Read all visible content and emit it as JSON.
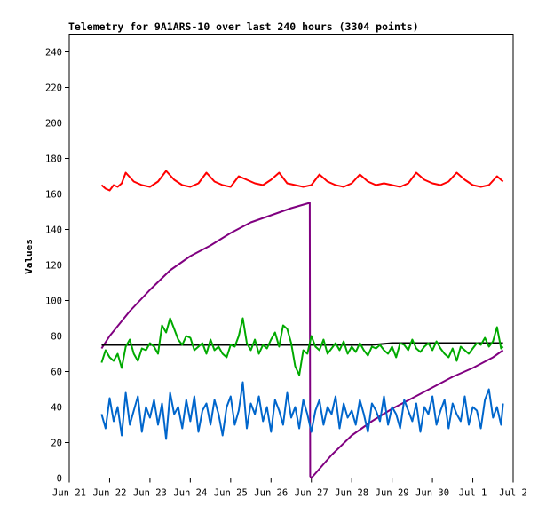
{
  "chart_data": {
    "type": "line",
    "title": "Telemetry for 9A1ARS-10 over last 240 hours (3304 points)",
    "ylabel": "Values",
    "xlabel": "",
    "ylim": [
      0,
      250
    ],
    "yticks": [
      0,
      20,
      40,
      60,
      80,
      100,
      120,
      140,
      160,
      180,
      200,
      220,
      240
    ],
    "xlim": [
      0,
      11
    ],
    "xticks": [
      {
        "label": "Jun 21",
        "x": 0
      },
      {
        "label": "Jun 22",
        "x": 1
      },
      {
        "label": "Jun 23",
        "x": 2
      },
      {
        "label": "Jun 24",
        "x": 3
      },
      {
        "label": "Jun 25",
        "x": 4
      },
      {
        "label": "Jun 26",
        "x": 5
      },
      {
        "label": "Jun 27",
        "x": 6
      },
      {
        "label": "Jun 28",
        "x": 7
      },
      {
        "label": "Jun 29",
        "x": 8
      },
      {
        "label": "Jun 30",
        "x": 9
      },
      {
        "label": "Jul 1",
        "x": 10
      },
      {
        "label": "Jul 2",
        "x": 11
      }
    ],
    "grid": false,
    "legend": "none",
    "series": [
      {
        "color": "#ff0000",
        "x": [
          0.8,
          0.9,
          1.0,
          1.1,
          1.2,
          1.3,
          1.4,
          1.6,
          1.8,
          2.0,
          2.2,
          2.4,
          2.6,
          2.8,
          3.0,
          3.2,
          3.4,
          3.6,
          3.8,
          4.0,
          4.2,
          4.4,
          4.6,
          4.8,
          5.0,
          5.2,
          5.4,
          5.6,
          5.8,
          6.0,
          6.2,
          6.4,
          6.6,
          6.8,
          7.0,
          7.2,
          7.4,
          7.6,
          7.8,
          8.0,
          8.2,
          8.4,
          8.6,
          8.8,
          9.0,
          9.2,
          9.4,
          9.6,
          9.8,
          10.0,
          10.2,
          10.4,
          10.6,
          10.75
        ],
        "y": [
          165,
          163,
          162,
          165,
          164,
          166,
          172,
          167,
          165,
          164,
          167,
          173,
          168,
          165,
          164,
          166,
          172,
          167,
          165,
          164,
          170,
          168,
          166,
          165,
          168,
          172,
          166,
          165,
          164,
          165,
          171,
          167,
          165,
          164,
          166,
          171,
          167,
          165,
          166,
          165,
          164,
          166,
          172,
          168,
          166,
          165,
          167,
          172,
          168,
          165,
          164,
          165,
          170,
          167
        ]
      },
      {
        "color": "#800080",
        "x": [
          0.8,
          1.0,
          1.5,
          2.0,
          2.5,
          3.0,
          3.5,
          4.0,
          4.5,
          5.0,
          5.5,
          5.96,
          5.97,
          6.0,
          6.5,
          7.0,
          7.5,
          8.0,
          8.5,
          9.0,
          9.5,
          10.0,
          10.5,
          10.75
        ],
        "y": [
          73,
          80,
          94,
          106,
          117,
          125,
          131,
          138,
          144,
          148,
          152,
          155,
          1,
          0,
          13,
          24,
          32,
          39,
          45,
          51,
          57,
          62,
          68,
          72
        ]
      },
      {
        "color": "#000000",
        "x": [
          0.8,
          1.5,
          2.5,
          3.5,
          4.5,
          5.5,
          6.5,
          7.5,
          8.0,
          8.5,
          9.5,
          10.75
        ],
        "y": [
          75,
          75,
          75,
          75,
          75,
          75,
          75,
          75,
          76,
          76,
          76,
          76
        ]
      },
      {
        "color": "#00aa00",
        "x": [
          0.8,
          0.9,
          1.0,
          1.1,
          1.2,
          1.3,
          1.4,
          1.5,
          1.6,
          1.7,
          1.8,
          1.9,
          2.0,
          2.1,
          2.2,
          2.3,
          2.4,
          2.5,
          2.6,
          2.7,
          2.8,
          2.9,
          3.0,
          3.1,
          3.2,
          3.3,
          3.4,
          3.5,
          3.6,
          3.7,
          3.8,
          3.9,
          4.0,
          4.1,
          4.2,
          4.3,
          4.4,
          4.5,
          4.6,
          4.7,
          4.8,
          4.9,
          5.0,
          5.1,
          5.2,
          5.3,
          5.4,
          5.5,
          5.6,
          5.7,
          5.8,
          5.9,
          6.0,
          6.1,
          6.2,
          6.3,
          6.4,
          6.5,
          6.6,
          6.7,
          6.8,
          6.9,
          7.0,
          7.1,
          7.2,
          7.3,
          7.4,
          7.5,
          7.6,
          7.7,
          7.8,
          7.9,
          8.0,
          8.1,
          8.2,
          8.3,
          8.4,
          8.5,
          8.6,
          8.7,
          8.8,
          8.9,
          9.0,
          9.1,
          9.2,
          9.3,
          9.4,
          9.5,
          9.6,
          9.7,
          9.8,
          9.9,
          10.0,
          10.1,
          10.2,
          10.3,
          10.4,
          10.5,
          10.6,
          10.7,
          10.75
        ],
        "y": [
          65,
          72,
          68,
          66,
          70,
          62,
          74,
          78,
          70,
          66,
          73,
          72,
          76,
          74,
          70,
          86,
          82,
          90,
          84,
          78,
          75,
          80,
          79,
          72,
          74,
          76,
          70,
          78,
          72,
          74,
          70,
          68,
          75,
          74,
          80,
          90,
          76,
          72,
          78,
          70,
          75,
          73,
          78,
          82,
          74,
          86,
          84,
          76,
          63,
          58,
          72,
          70,
          80,
          74,
          72,
          78,
          70,
          73,
          76,
          72,
          77,
          70,
          74,
          71,
          76,
          72,
          69,
          74,
          73,
          75,
          72,
          70,
          74,
          68,
          76,
          75,
          72,
          78,
          73,
          71,
          74,
          76,
          72,
          77,
          73,
          70,
          68,
          73,
          66,
          74,
          72,
          70,
          73,
          76,
          75,
          79,
          74,
          77,
          85,
          73,
          74
        ]
      },
      {
        "color": "#0066cc",
        "x": [
          0.8,
          0.9,
          1.0,
          1.1,
          1.2,
          1.3,
          1.4,
          1.5,
          1.6,
          1.7,
          1.8,
          1.9,
          2.0,
          2.1,
          2.2,
          2.3,
          2.4,
          2.5,
          2.6,
          2.7,
          2.8,
          2.9,
          3.0,
          3.1,
          3.2,
          3.3,
          3.4,
          3.5,
          3.6,
          3.7,
          3.8,
          3.9,
          4.0,
          4.1,
          4.2,
          4.3,
          4.4,
          4.5,
          4.6,
          4.7,
          4.8,
          4.9,
          5.0,
          5.1,
          5.2,
          5.3,
          5.4,
          5.5,
          5.6,
          5.7,
          5.8,
          5.9,
          6.0,
          6.1,
          6.2,
          6.3,
          6.4,
          6.5,
          6.6,
          6.7,
          6.8,
          6.9,
          7.0,
          7.1,
          7.2,
          7.3,
          7.4,
          7.5,
          7.6,
          7.7,
          7.8,
          7.9,
          8.0,
          8.1,
          8.2,
          8.3,
          8.4,
          8.5,
          8.6,
          8.7,
          8.8,
          8.9,
          9.0,
          9.1,
          9.2,
          9.3,
          9.4,
          9.5,
          9.6,
          9.7,
          9.8,
          9.9,
          10.0,
          10.1,
          10.2,
          10.3,
          10.4,
          10.5,
          10.6,
          10.7,
          10.75
        ],
        "y": [
          36,
          28,
          45,
          32,
          40,
          24,
          48,
          30,
          38,
          46,
          26,
          40,
          34,
          44,
          30,
          42,
          22,
          48,
          36,
          40,
          28,
          44,
          32,
          46,
          26,
          38,
          42,
          30,
          44,
          36,
          24,
          40,
          46,
          30,
          38,
          54,
          28,
          42,
          36,
          46,
          32,
          40,
          26,
          44,
          38,
          30,
          48,
          34,
          40,
          28,
          44,
          36,
          26,
          38,
          44,
          30,
          40,
          36,
          46,
          28,
          42,
          34,
          38,
          30,
          44,
          36,
          26,
          42,
          38,
          32,
          46,
          30,
          40,
          36,
          28,
          44,
          38,
          32,
          42,
          26,
          40,
          36,
          46,
          30,
          38,
          44,
          28,
          42,
          36,
          32,
          46,
          30,
          40,
          38,
          28,
          44,
          50,
          34,
          40,
          30,
          42
        ]
      }
    ]
  }
}
